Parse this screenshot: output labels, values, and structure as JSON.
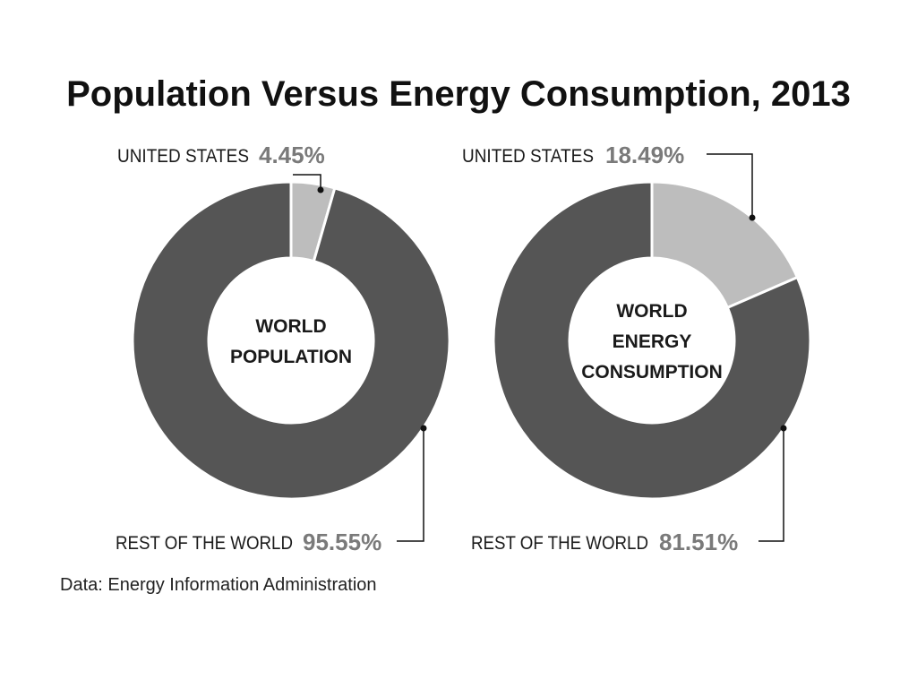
{
  "chart_data": [
    {
      "type": "pie",
      "variant": "donut",
      "title": "Population Versus Energy Consumption, 2013",
      "center_label": [
        "WORLD",
        "POPULATION"
      ],
      "slices": [
        {
          "name": "UNITED STATES",
          "value": 4.45,
          "value_label": "4.45%",
          "color": "#bdbdbd"
        },
        {
          "name": "REST OF THE WORLD",
          "value": 95.55,
          "value_label": "95.55%",
          "color": "#555555"
        }
      ]
    },
    {
      "type": "pie",
      "variant": "donut",
      "center_label": [
        "WORLD",
        "ENERGY",
        "CONSUMPTION"
      ],
      "slices": [
        {
          "name": "UNITED STATES",
          "value": 18.49,
          "value_label": "18.49%",
          "color": "#bdbdbd"
        },
        {
          "name": "REST OF THE WORLD",
          "value": 81.51,
          "value_label": "81.51%",
          "color": "#555555"
        }
      ]
    }
  ],
  "title": "Population Versus Energy Consumption, 2013",
  "source": "Data: Energy Information Administration"
}
